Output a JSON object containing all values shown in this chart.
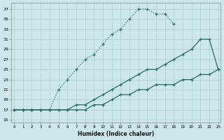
{
  "xlabel": "Humidex (Indice chaleur)",
  "bg_color": "#cce8ec",
  "grid_color": "#aacccc",
  "line_color": "#2a6b5e",
  "xlim": [
    -0.3,
    23.3
  ],
  "ylim": [
    14.5,
    38.2
  ],
  "xticks": [
    0,
    1,
    2,
    3,
    4,
    5,
    6,
    7,
    8,
    9,
    10,
    11,
    12,
    13,
    14,
    15,
    16,
    17,
    18,
    19,
    20,
    21,
    22,
    23
  ],
  "yticks": [
    15,
    17,
    19,
    21,
    23,
    25,
    27,
    29,
    31,
    33,
    35,
    37
  ],
  "curve1_x": [
    0,
    1,
    2,
    3,
    4,
    5,
    6,
    7,
    8,
    9,
    10,
    11,
    12,
    13,
    14,
    15,
    16,
    17,
    18
  ],
  "curve1_y": [
    17,
    17,
    17,
    17,
    17,
    21,
    23,
    25,
    27,
    28,
    30,
    32,
    33,
    35,
    37,
    37,
    36,
    36,
    34
  ],
  "curve2_x": [
    0,
    1,
    2,
    3,
    4,
    5,
    6,
    7,
    8,
    9,
    10,
    11,
    12,
    13,
    14,
    15,
    16,
    17,
    18,
    19,
    20,
    21,
    22,
    23
  ],
  "curve2_y": [
    17,
    17,
    17,
    17,
    17,
    17,
    17,
    18,
    18,
    19,
    20,
    21,
    22,
    23,
    24,
    25,
    25,
    26,
    27,
    28,
    29,
    31,
    31,
    25
  ],
  "curve3_x": [
    0,
    1,
    2,
    3,
    4,
    5,
    6,
    7,
    8,
    9,
    10,
    11,
    12,
    13,
    14,
    15,
    16,
    17,
    18,
    19,
    20,
    21,
    22,
    23
  ],
  "curve3_y": [
    17,
    17,
    17,
    17,
    17,
    17,
    17,
    17,
    17,
    18,
    18,
    19,
    20,
    20,
    21,
    21,
    22,
    22,
    22,
    23,
    23,
    24,
    24,
    25
  ],
  "curve1_dashed": true,
  "curve2_dashed": false,
  "curve3_dashed": false
}
